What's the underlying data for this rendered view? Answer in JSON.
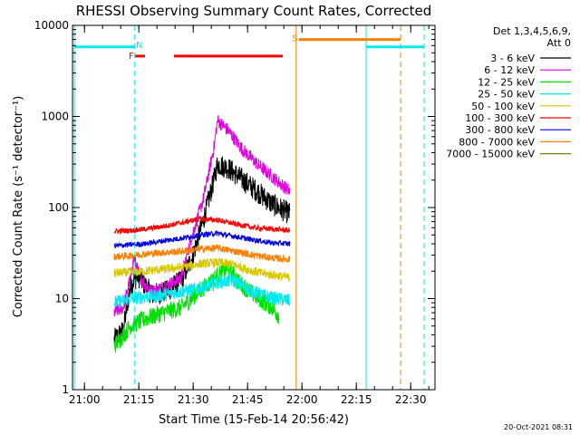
{
  "chart_data": {
    "type": "line",
    "title": "RHESSI Observing Summary Count Rates, Corrected",
    "xlabel": "Start Time (15-Feb-14 20:56:42)",
    "ylabel": "Corrected Count Rate (s⁻¹ detector⁻¹)",
    "x_unit": "minutes since 20:56:42",
    "xlim": [
      0,
      100
    ],
    "ylim": [
      1,
      10000
    ],
    "yscale": "log",
    "x_ticks": [
      {
        "label": "21:00",
        "value": 3.3
      },
      {
        "label": "21:15",
        "value": 18.3
      },
      {
        "label": "21:30",
        "value": 33.3
      },
      {
        "label": "21:45",
        "value": 48.3
      },
      {
        "label": "22:00",
        "value": 63.3
      },
      {
        "label": "22:15",
        "value": 78.3
      },
      {
        "label": "22:30",
        "value": 93.3
      }
    ],
    "y_ticks": [
      {
        "label": "1",
        "value": 1
      },
      {
        "label": "10",
        "value": 10
      },
      {
        "label": "100",
        "value": 100
      },
      {
        "label": "1000",
        "value": 1000
      },
      {
        "label": "10000",
        "value": 10000
      }
    ],
    "legend": {
      "position": "top-right",
      "header": [
        "Det 1,3,4,5,6,9,",
        "Att 0"
      ],
      "entries": [
        {
          "label": "3 - 6 keV",
          "color": "#000000"
        },
        {
          "label": "6 - 12 keV",
          "color": "#e000e0"
        },
        {
          "label": "12 - 25 keV",
          "color": "#00e000"
        },
        {
          "label": "25 - 50 keV",
          "color": "#00e8f0"
        },
        {
          "label": "50 - 100 keV",
          "color": "#d8c800"
        },
        {
          "label": "100 - 300 keV",
          "color": "#ff0000"
        },
        {
          "label": "300 - 800 keV",
          "color": "#0000e0"
        },
        {
          "label": "800 - 7000 keV",
          "color": "#ff8000"
        },
        {
          "label": "7000 - 15000 keV",
          "color": "#808000"
        }
      ]
    },
    "series": [
      {
        "name": "3 - 6 keV",
        "color": "#000000",
        "noise": 0.25,
        "x": [
          11.5,
          14,
          16,
          18,
          22,
          26,
          30,
          33,
          36,
          39,
          40,
          43,
          47,
          51,
          55,
          60
        ],
        "y": [
          3.5,
          4.5,
          14,
          18,
          11,
          12,
          16,
          28,
          70,
          200,
          300,
          270,
          200,
          150,
          110,
          85
        ]
      },
      {
        "name": "6 - 12 keV",
        "color": "#e000e0",
        "noise": 0.15,
        "x": [
          11.5,
          14,
          16,
          17,
          18,
          20,
          22,
          26,
          30,
          33,
          36,
          39,
          40,
          43,
          47,
          51,
          55,
          60
        ],
        "y": [
          7,
          8,
          17,
          28,
          20,
          14,
          12,
          14,
          17,
          50,
          120,
          450,
          900,
          700,
          430,
          300,
          220,
          150
        ]
      },
      {
        "name": "12 - 25 keV",
        "color": "#00e000",
        "noise": 0.2,
        "x": [
          11.5,
          16,
          20,
          25,
          30,
          35,
          40,
          43,
          46,
          50,
          55,
          57
        ],
        "y": [
          3,
          5,
          6,
          7,
          8,
          12,
          18,
          22,
          15,
          11,
          8,
          6.5
        ]
      },
      {
        "name": "25 - 50 keV",
        "color": "#00e8f0",
        "noise": 0.15,
        "x": [
          11.5,
          16,
          20,
          25,
          30,
          35,
          40,
          44,
          48,
          52,
          56,
          60
        ],
        "y": [
          9,
          10,
          10.5,
          11,
          12,
          13,
          15,
          16,
          13,
          11,
          10,
          9.5
        ]
      },
      {
        "name": "50 - 100 keV",
        "color": "#d8c800",
        "noise": 0.1,
        "x": [
          11.5,
          16,
          20,
          25,
          30,
          35,
          40,
          44,
          48,
          52,
          56,
          60
        ],
        "y": [
          19,
          19.5,
          20,
          21,
          22,
          24,
          25,
          24,
          21,
          19,
          18,
          17
        ]
      },
      {
        "name": "100 - 300 keV",
        "color": "#ff0000",
        "noise": 0.06,
        "x": [
          11.5,
          16,
          20,
          25,
          30,
          35,
          40,
          45,
          50,
          55,
          60
        ],
        "y": [
          55,
          56,
          58,
          62,
          68,
          75,
          73,
          66,
          60,
          58,
          56
        ]
      },
      {
        "name": "300 - 800 keV",
        "color": "#0000e0",
        "noise": 0.06,
        "x": [
          11.5,
          16,
          20,
          25,
          30,
          35,
          40,
          45,
          50,
          55,
          60
        ],
        "y": [
          38,
          39,
          40,
          43,
          46,
          50,
          52,
          48,
          44,
          41,
          40
        ]
      },
      {
        "name": "800 - 7000 keV",
        "color": "#ff8000",
        "noise": 0.08,
        "x": [
          11.5,
          16,
          20,
          25,
          30,
          35,
          40,
          45,
          50,
          55,
          60
        ],
        "y": [
          29,
          29.5,
          31,
          32,
          33,
          35,
          36,
          33,
          30,
          28,
          27
        ]
      }
    ],
    "flag_bars": [
      {
        "label": "N",
        "color": "#00e8f0",
        "x": [
          0.5,
          17.2
        ],
        "y": 5800,
        "label_x": 17.5,
        "label_y": 6200
      },
      {
        "label": "",
        "color": "#00e8f0",
        "x": [
          81,
          97
        ],
        "y": 5800
      },
      {
        "label": "F",
        "color": "#ff0000",
        "x": [
          17.3,
          20
        ],
        "y": 4600,
        "label_x": 15.5,
        "label_y": 4700
      },
      {
        "label": "",
        "color": "#ff0000",
        "x": [
          28,
          58
        ],
        "y": 4600
      },
      {
        "label": "S",
        "color": "#ff8000",
        "x": [
          62.4,
          90.5
        ],
        "y": 7000,
        "label_x": 60.6,
        "label_y": 7300
      }
    ],
    "vlines": [
      {
        "x": 0.5,
        "color": "#00e8f0",
        "style": "solid"
      },
      {
        "x": 17.2,
        "color": "#00e8f0",
        "style": "dashed"
      },
      {
        "x": 61.7,
        "color": "#ff8000",
        "style": "solid"
      },
      {
        "x": 81,
        "color": "#00e8f0",
        "style": "solid"
      },
      {
        "x": 90.5,
        "color": "#ff8000",
        "style": "dashed"
      },
      {
        "x": 97,
        "color": "#00e8f0",
        "style": "dashed"
      }
    ]
  },
  "footer": {
    "timestamp": "20-Oct-2021 08:31"
  }
}
